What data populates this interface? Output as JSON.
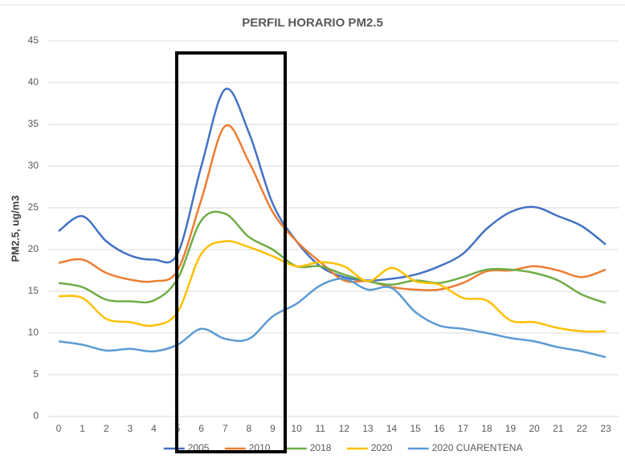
{
  "chart_data": {
    "type": "line",
    "title": "PERFIL HORARIO PM2.5",
    "y_label": "PM2.5, ug/m3",
    "categories": [
      "0",
      "1",
      "2",
      "3",
      "4",
      "5",
      "6",
      "7",
      "8",
      "9",
      "10",
      "11",
      "12",
      "13",
      "14",
      "15",
      "16",
      "17",
      "18",
      "19",
      "20",
      "21",
      "22",
      "23"
    ],
    "ylim": [
      0,
      45
    ],
    "yticks": [
      0,
      5,
      10,
      15,
      20,
      25,
      30,
      35,
      40,
      45
    ],
    "grid": true,
    "legend": "bottom",
    "smooth": true,
    "series": [
      {
        "name": "2005",
        "color": "#4472c4",
        "values": [
          22.2,
          24,
          21,
          19.3,
          18.8,
          19.5,
          30,
          39.2,
          34,
          25.5,
          21,
          18,
          16.7,
          16.3,
          16.5,
          17,
          18,
          19.5,
          22.5,
          24.5,
          25.1,
          24,
          22.8,
          20.6
        ]
      },
      {
        "name": "2010",
        "color": "#ed7d31",
        "values": [
          18.4,
          18.8,
          17.2,
          16.4,
          16.2,
          17.5,
          26,
          34.8,
          30.5,
          24.5,
          21,
          18.5,
          16.3,
          16.2,
          15.5,
          15.2,
          15.2,
          16,
          17.4,
          17.5,
          18,
          17.5,
          16.7,
          17.6
        ]
      },
      {
        "name": "2018",
        "color": "#70ad47",
        "values": [
          16,
          15.5,
          14,
          13.8,
          13.9,
          16.5,
          23.5,
          24.3,
          21.5,
          20,
          18,
          18,
          17,
          16.2,
          15.8,
          16.3,
          16,
          16.7,
          17.6,
          17.6,
          17.2,
          16.3,
          14.6,
          13.6
        ]
      },
      {
        "name": "2020",
        "color": "#ffc000",
        "values": [
          14.4,
          14.2,
          11.7,
          11.3,
          10.9,
          12.5,
          19.5,
          21,
          20.3,
          19.2,
          18,
          18.5,
          18,
          16.2,
          17.8,
          16.2,
          15.8,
          14.2,
          13.9,
          11.5,
          11.3,
          10.6,
          10.2,
          10.2
        ]
      },
      {
        "name": "2020 CUARENTENA",
        "color": "#5b9bd5",
        "values": [
          9,
          8.6,
          7.9,
          8.1,
          7.8,
          8.6,
          10.5,
          9.3,
          9.3,
          12,
          13.5,
          15.7,
          16.5,
          15.2,
          15.4,
          12.5,
          10.9,
          10.5,
          10,
          9.4,
          9,
          8.3,
          7.8,
          7.1
        ]
      }
    ]
  }
}
